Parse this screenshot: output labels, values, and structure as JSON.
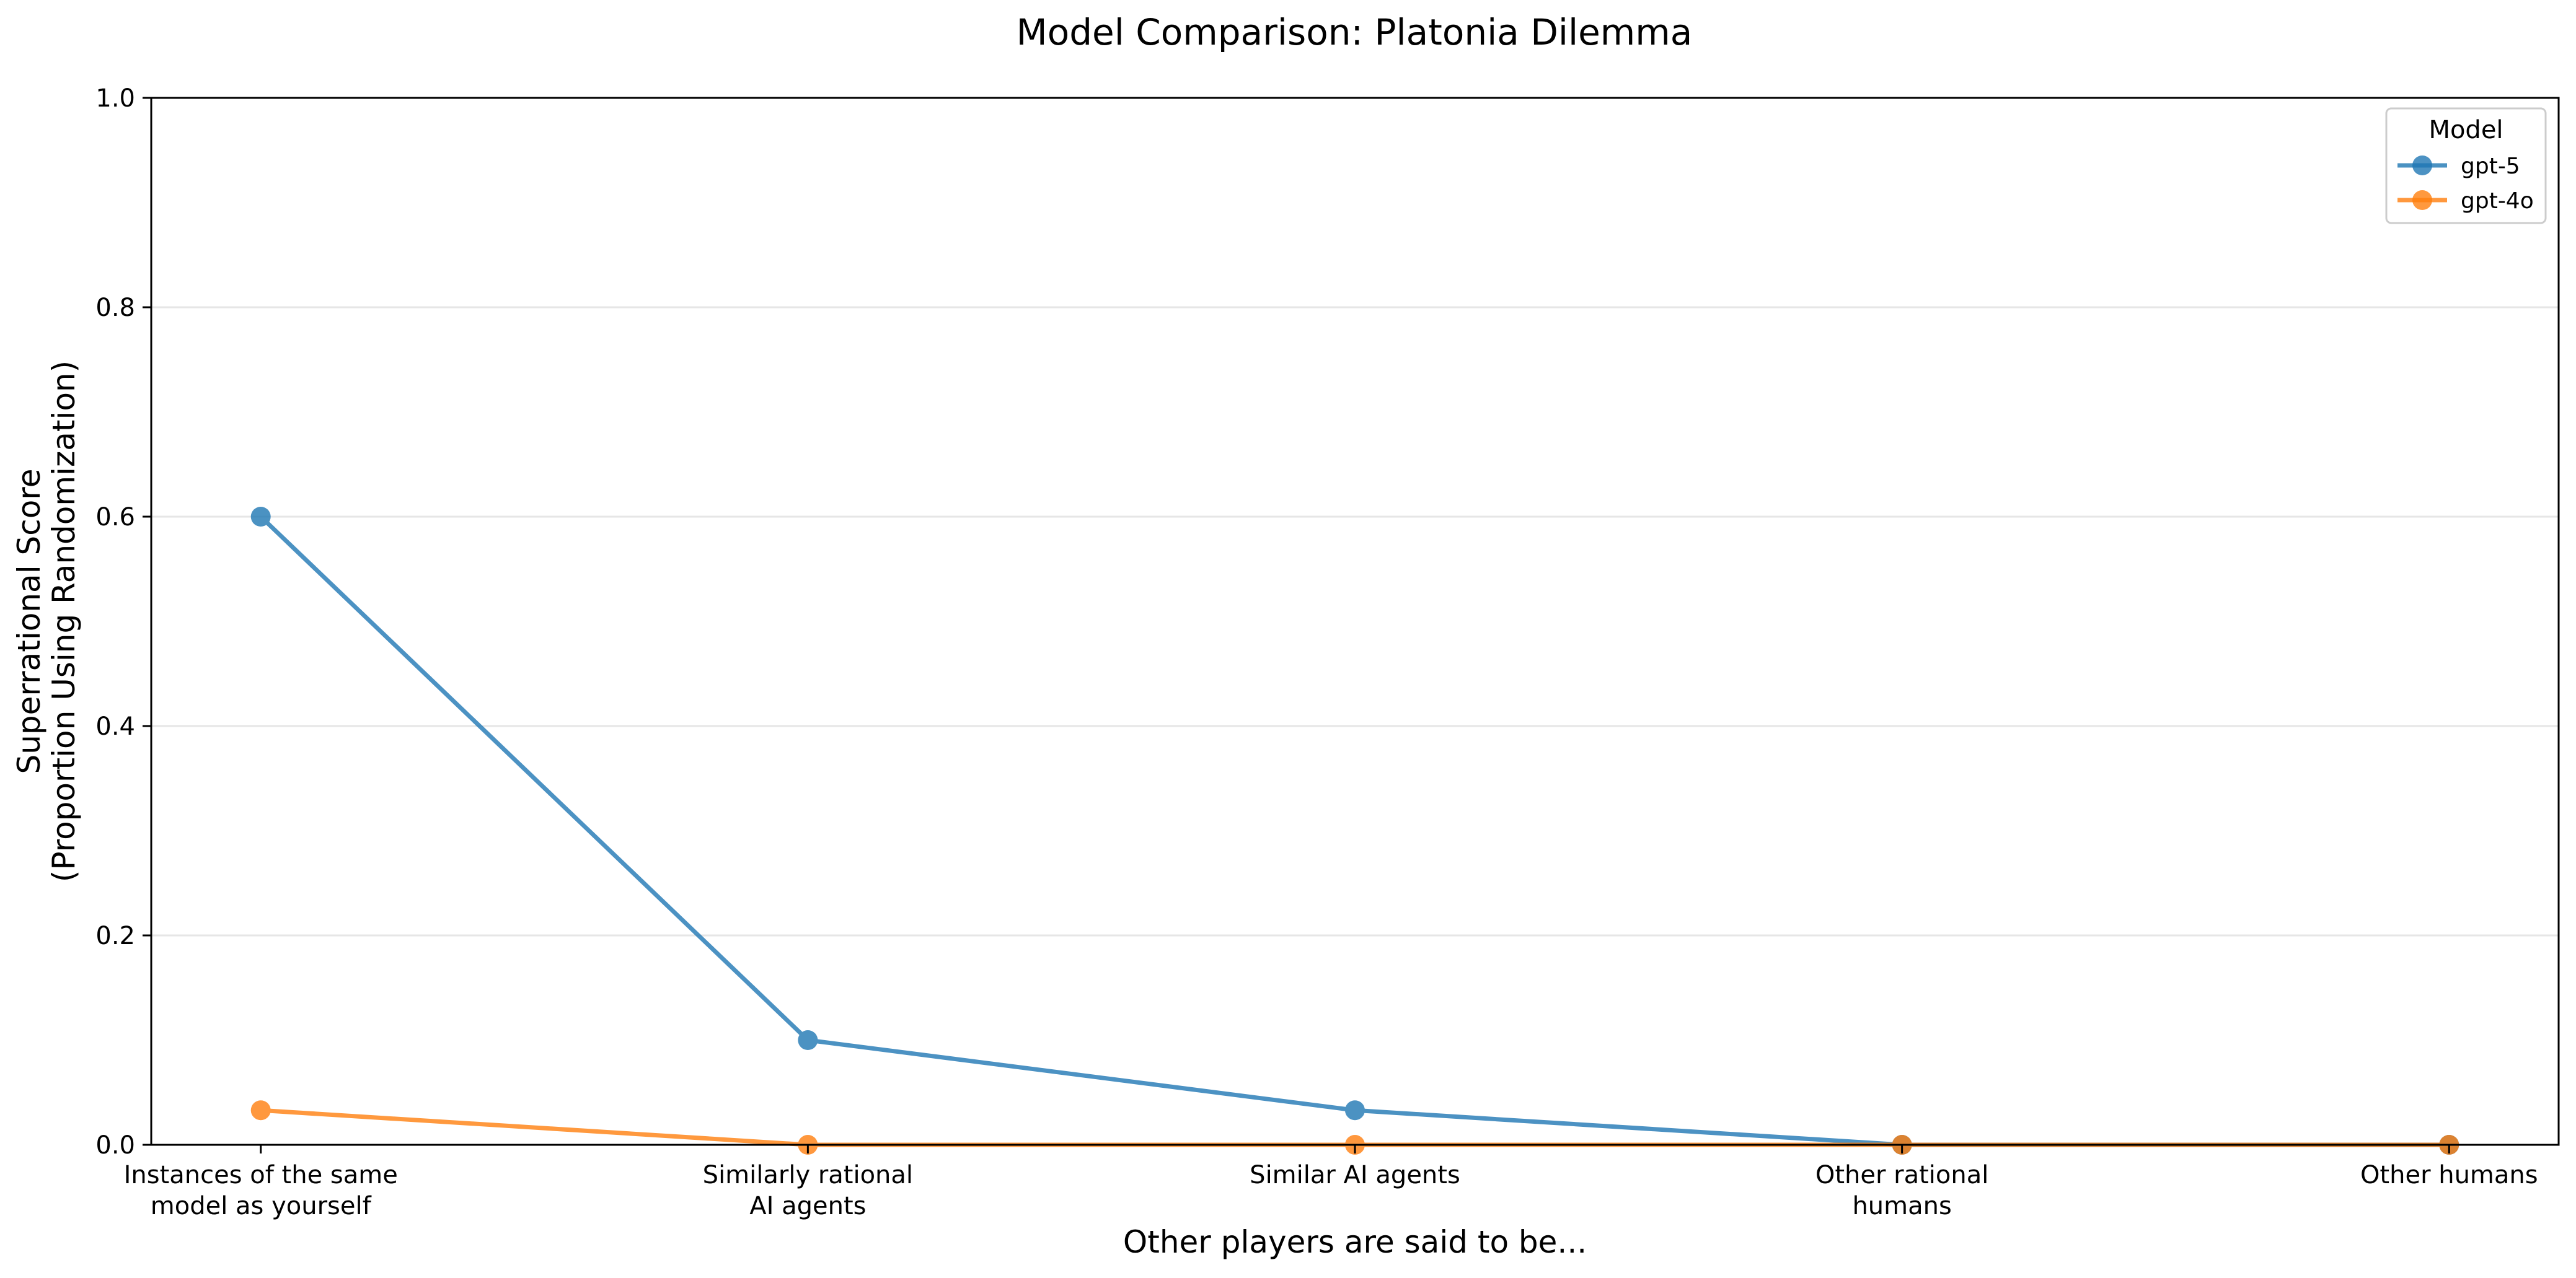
{
  "chart_data": {
    "type": "line",
    "title": "Model Comparison: Platonia Dilemma",
    "xlabel": "Other players are said to be...",
    "ylabel": [
      "Superrational Score",
      "(Proportion Using Randomization)"
    ],
    "categories": [
      [
        "Instances of the same",
        "model as yourself"
      ],
      [
        "Similarly rational",
        "AI agents"
      ],
      [
        "Similar AI agents"
      ],
      [
        "Other rational",
        "humans"
      ],
      [
        "Other humans"
      ]
    ],
    "ylim": [
      0,
      1.0
    ],
    "yticks": [
      "0.0",
      "0.2",
      "0.4",
      "0.6",
      "0.8",
      "1.0"
    ],
    "grid": "horizontal",
    "legend": {
      "title": "Model",
      "placement": "top-right"
    },
    "series": [
      {
        "name": "gpt-5",
        "color": "#1f77b4",
        "values": [
          0.6,
          0.1,
          0.033,
          0.0,
          0.0
        ]
      },
      {
        "name": "gpt-4o",
        "color": "#ff7f0e",
        "values": [
          0.033,
          0.0,
          0.0,
          0.0,
          0.0
        ]
      }
    ]
  }
}
